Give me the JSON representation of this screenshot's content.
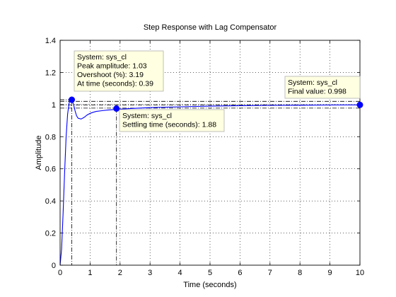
{
  "chart_data": {
    "type": "line",
    "title": "Step Response with Lag Compensator",
    "xlabel": "Time (seconds)",
    "ylabel": "Amplitude",
    "xlim": [
      0,
      10
    ],
    "ylim": [
      0,
      1.4
    ],
    "xticks": [
      "0",
      "1",
      "2",
      "3",
      "4",
      "5",
      "6",
      "7",
      "8",
      "9",
      "10"
    ],
    "yticks": [
      "0",
      "0.2",
      "0.4",
      "0.6",
      "0.8",
      "1",
      "1.2",
      "1.4"
    ],
    "grid": true,
    "line_color": "#0000ff",
    "series": [
      {
        "x": [
          0,
          0.05,
          0.1,
          0.15,
          0.2,
          0.25,
          0.3,
          0.35,
          0.39,
          0.45,
          0.5,
          0.55,
          0.6,
          0.7,
          0.8,
          0.9,
          1.0,
          1.1,
          1.2,
          1.4,
          1.6,
          1.88,
          2.2,
          2.6,
          3,
          4,
          5,
          6,
          7,
          8,
          9,
          10
        ],
        "values": [
          0,
          0.1,
          0.32,
          0.58,
          0.8,
          0.94,
          1.01,
          1.03,
          1.03,
          1.0,
          0.96,
          0.93,
          0.915,
          0.91,
          0.92,
          0.935,
          0.945,
          0.952,
          0.957,
          0.962,
          0.966,
          0.97,
          0.974,
          0.978,
          0.981,
          0.986,
          0.99,
          0.993,
          0.995,
          0.996,
          0.997,
          0.998
        ]
      }
    ],
    "annotations": [
      {
        "id": "peak",
        "x": 0.39,
        "y": 1.03,
        "lines": [
          "System: sys_cl",
          "Peak amplitude: 1.03",
          "Overshoot (%): 3.19",
          "At time (seconds): 0.39"
        ]
      },
      {
        "id": "settling",
        "x": 1.88,
        "y": 0.975,
        "lines": [
          "System: sys_cl",
          "Settling time (seconds): 1.88"
        ]
      },
      {
        "id": "final",
        "x": 10,
        "y": 0.998,
        "lines": [
          "System: sys_cl",
          "Final value: 0.998"
        ]
      }
    ]
  }
}
